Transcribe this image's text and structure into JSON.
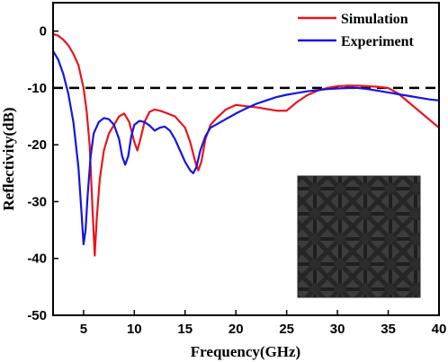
{
  "chart_data": {
    "type": "line",
    "xlabel": "Frequency(GHz)",
    "ylabel": "Reflectivity(dB)",
    "xlim": [
      2,
      40
    ],
    "ylim": [
      -50,
      5
    ],
    "x_ticks": [
      5,
      10,
      15,
      20,
      25,
      30,
      35,
      40
    ],
    "y_ticks": [
      0,
      -10,
      -20,
      -30,
      -40,
      -50
    ],
    "grid": false,
    "legend_position": "top-right",
    "reference_line": {
      "y": -10,
      "style": "dashed",
      "color": "#000000"
    },
    "inset": "photo of sample",
    "series": [
      {
        "name": "Simulation",
        "color": "#e8141c",
        "x": [
          2,
          2.5,
          3,
          3.5,
          4,
          4.5,
          5,
          5.3,
          5.6,
          5.9,
          6.1,
          6.3,
          6.6,
          7,
          7.5,
          8,
          8.5,
          9,
          9.5,
          10,
          10.3,
          10.6,
          11,
          11.5,
          12,
          12.5,
          13,
          14,
          15,
          15.5,
          16,
          16.3,
          16.6,
          17,
          17.5,
          18,
          19,
          20,
          21,
          22,
          23,
          24,
          25,
          26,
          27,
          28,
          29,
          30,
          31,
          32,
          33,
          34,
          35,
          36,
          37,
          38,
          39,
          40
        ],
        "y": [
          -0.5,
          -0.8,
          -1.5,
          -2.5,
          -4,
          -6,
          -10,
          -14,
          -20,
          -32,
          -39.5,
          -33,
          -26,
          -21,
          -18,
          -16.5,
          -15,
          -14.5,
          -16,
          -19.5,
          -21,
          -19,
          -16,
          -14.2,
          -13.8,
          -14,
          -14.3,
          -15,
          -17,
          -19.5,
          -23,
          -24.5,
          -23,
          -19,
          -16.5,
          -15.5,
          -13.8,
          -13,
          -13.2,
          -13.4,
          -13.7,
          -14,
          -14,
          -12.5,
          -11.3,
          -10.5,
          -10,
          -9.7,
          -9.6,
          -9.6,
          -9.7,
          -9.8,
          -10,
          -11,
          -12.5,
          -14,
          -15.5,
          -17
        ]
      },
      {
        "name": "Experiment",
        "color": "#1414e6",
        "x": [
          2,
          2.5,
          3,
          3.5,
          4,
          4.5,
          4.8,
          5,
          5.2,
          5.4,
          5.7,
          6,
          6.5,
          7,
          7.5,
          8,
          8.5,
          8.8,
          9.1,
          9.4,
          9.7,
          10,
          10.5,
          11,
          11.5,
          12,
          12.5,
          13,
          13.5,
          14,
          14.5,
          15,
          15.5,
          15.8,
          16.1,
          16.5,
          17,
          17.5,
          18,
          19,
          20,
          21,
          22,
          23,
          24,
          25,
          26,
          27,
          28,
          29,
          30,
          31,
          32,
          33,
          34,
          35,
          36,
          37,
          38,
          39,
          40
        ],
        "y": [
          -3.5,
          -5,
          -7.5,
          -11,
          -16,
          -24,
          -32,
          -37.5,
          -35,
          -29,
          -22,
          -18,
          -16,
          -15.3,
          -15.5,
          -16.5,
          -19,
          -22,
          -23.5,
          -22,
          -18.5,
          -16.5,
          -15.8,
          -16,
          -16.6,
          -17.5,
          -17,
          -16.8,
          -17.5,
          -19,
          -21,
          -23,
          -24.5,
          -25,
          -24,
          -21,
          -18.5,
          -17,
          -16.5,
          -15.5,
          -14.5,
          -13.6,
          -12.8,
          -12.2,
          -11.6,
          -11.2,
          -10.9,
          -10.6,
          -10.4,
          -10.2,
          -10.1,
          -10,
          -10,
          -10.2,
          -10.5,
          -10.8,
          -11.1,
          -11.4,
          -11.7,
          -12,
          -12.2
        ]
      }
    ]
  }
}
